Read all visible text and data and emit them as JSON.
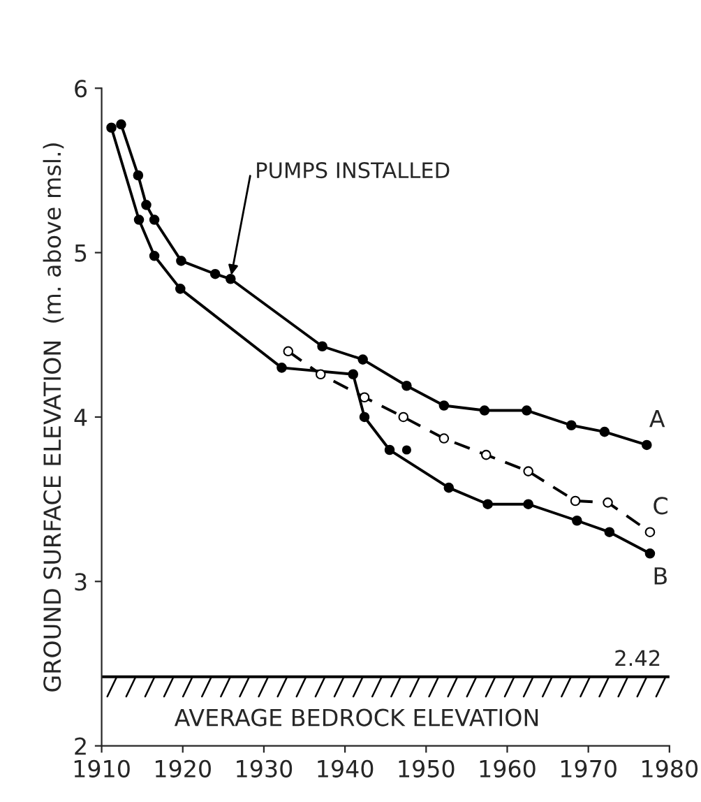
{
  "chart_data": {
    "type": "line",
    "ylabel": "GROUND SURFACE ELEVATION  (m. above msl.)",
    "xlim": [
      1910,
      1980
    ],
    "xticks": [
      1910,
      1920,
      1930,
      1940,
      1950,
      1960,
      1970,
      1980
    ],
    "ylim": [
      2,
      6
    ],
    "yticks": [
      2,
      3,
      4,
      5,
      6
    ],
    "grid": false,
    "legend": false,
    "series": [
      {
        "name": "A",
        "color": "#000000",
        "marker": "circle",
        "line_style": "solid",
        "x": [
          1912.4,
          1914.5,
          1915.5,
          1916.5,
          1919.8,
          1924,
          1925.9,
          1937.2,
          1942.2,
          1947.6,
          1952.2,
          1957.2,
          1962.4,
          1967.9,
          1972,
          1977.2
        ],
        "values": [
          5.78,
          5.47,
          5.29,
          5.2,
          4.95,
          4.87,
          4.84,
          4.43,
          4.35,
          4.19,
          4.07,
          4.04,
          4.04,
          3.95,
          3.91,
          3.83
        ]
      },
      {
        "name": "B",
        "color": "#000000",
        "marker": "circle",
        "line_style": "solid",
        "x": [
          1911.2,
          1914.6,
          1916.5,
          1919.7,
          1932.2,
          1941,
          1942.4,
          1945.5,
          1952.8,
          1957.6,
          1962.6,
          1968.6,
          1972.6,
          1977.6
        ],
        "values": [
          5.76,
          5.2,
          4.98,
          4.78,
          4.3,
          4.26,
          4.0,
          3.8,
          3.57,
          3.47,
          3.47,
          3.37,
          3.3,
          3.17
        ]
      },
      {
        "name": "C",
        "color": "#000000",
        "marker": "circle",
        "line_style": "dashed",
        "x": [
          1933,
          1937,
          1942.4,
          1947.2,
          1952.2,
          1957.4,
          1962.6,
          1968.4,
          1972.4,
          1977.6
        ],
        "values": [
          4.4,
          4.26,
          4.12,
          4.0,
          3.87,
          3.77,
          3.67,
          3.49,
          3.48,
          3.3
        ]
      },
      {
        "type": "scatter",
        "color": "#000000",
        "marker": "circle",
        "x": [
          1947.6
        ],
        "values": [
          3.8
        ]
      }
    ],
    "ref_lines": [
      {
        "axis": "y",
        "value": 2.42,
        "label": "2.42",
        "line_style": "solid",
        "color": "#000000"
      }
    ],
    "annotations": [
      {
        "text": "PUMPS INSTALLED",
        "x": 1925.9,
        "y": 4.84
      },
      "AVERAGE BEDROCK ELEVATION"
    ]
  }
}
